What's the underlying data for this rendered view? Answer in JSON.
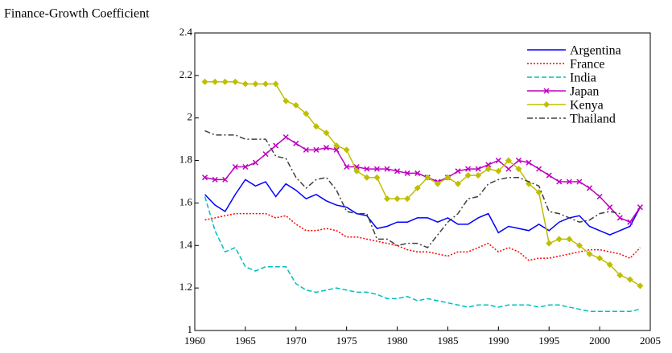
{
  "chart_data": {
    "type": "line",
    "title": "Finance-Growth Coefficient",
    "x": [
      1961,
      1962,
      1963,
      1964,
      1965,
      1966,
      1967,
      1968,
      1969,
      1970,
      1971,
      1972,
      1973,
      1974,
      1975,
      1976,
      1977,
      1978,
      1979,
      1980,
      1981,
      1982,
      1983,
      1984,
      1985,
      1986,
      1987,
      1988,
      1989,
      1990,
      1991,
      1992,
      1993,
      1994,
      1995,
      1996,
      1997,
      1998,
      1999,
      2000,
      2001,
      2002,
      2003,
      2004
    ],
    "xlim": [
      1960,
      2005
    ],
    "xticks": [
      1960,
      1965,
      1970,
      1975,
      1980,
      1985,
      1990,
      1995,
      2000,
      2005
    ],
    "ylim": [
      1,
      2.4
    ],
    "yticks": [
      1,
      1.2,
      1.4,
      1.6,
      1.8,
      2,
      2.2,
      2.4
    ],
    "legend": "upper right",
    "series": [
      {
        "name": "Argentina",
        "color": "#0000ff",
        "dash": "solid",
        "values": [
          1.64,
          1.59,
          1.56,
          1.64,
          1.71,
          1.68,
          1.7,
          1.63,
          1.69,
          1.66,
          1.62,
          1.64,
          1.61,
          1.59,
          1.58,
          1.55,
          1.54,
          1.48,
          1.49,
          1.51,
          1.51,
          1.53,
          1.53,
          1.51,
          1.53,
          1.5,
          1.5,
          1.53,
          1.55,
          1.46,
          1.49,
          1.48,
          1.47,
          1.5,
          1.47,
          1.51,
          1.53,
          1.54,
          1.49,
          1.47,
          1.45,
          1.47,
          1.49,
          1.58
        ]
      },
      {
        "name": "France",
        "color": "#ff0000",
        "dash": "dotted",
        "values": [
          1.52,
          1.53,
          1.54,
          1.55,
          1.55,
          1.55,
          1.55,
          1.53,
          1.54,
          1.5,
          1.47,
          1.47,
          1.48,
          1.47,
          1.44,
          1.44,
          1.43,
          1.42,
          1.41,
          1.4,
          1.38,
          1.37,
          1.37,
          1.36,
          1.35,
          1.37,
          1.37,
          1.39,
          1.41,
          1.37,
          1.39,
          1.37,
          1.33,
          1.34,
          1.34,
          1.35,
          1.36,
          1.37,
          1.38,
          1.38,
          1.37,
          1.36,
          1.34,
          1.39
        ]
      },
      {
        "name": "India",
        "color": "#00bfbf",
        "dash": "dashed",
        "values": [
          1.63,
          1.47,
          1.37,
          1.39,
          1.3,
          1.28,
          1.3,
          1.3,
          1.3,
          1.22,
          1.19,
          1.18,
          1.19,
          1.2,
          1.19,
          1.18,
          1.18,
          1.17,
          1.15,
          1.15,
          1.16,
          1.14,
          1.15,
          1.14,
          1.13,
          1.12,
          1.11,
          1.12,
          1.12,
          1.11,
          1.12,
          1.12,
          1.12,
          1.11,
          1.12,
          1.12,
          1.11,
          1.1,
          1.09,
          1.09,
          1.09,
          1.09,
          1.09,
          1.1
        ]
      },
      {
        "name": "Japan",
        "color": "#bf00bf",
        "dash": "solid",
        "marker": "x",
        "values": [
          1.72,
          1.71,
          1.71,
          1.77,
          1.77,
          1.79,
          1.83,
          1.87,
          1.91,
          1.88,
          1.85,
          1.85,
          1.86,
          1.85,
          1.77,
          1.77,
          1.76,
          1.76,
          1.76,
          1.75,
          1.74,
          1.74,
          1.72,
          1.7,
          1.72,
          1.75,
          1.76,
          1.76,
          1.78,
          1.8,
          1.76,
          1.8,
          1.79,
          1.76,
          1.73,
          1.7,
          1.7,
          1.7,
          1.67,
          1.63,
          1.58,
          1.53,
          1.51,
          1.58
        ]
      },
      {
        "name": "Kenya",
        "color": "#bfbf00",
        "dash": "solid",
        "marker": "diamond",
        "values": [
          2.17,
          2.17,
          2.17,
          2.17,
          2.16,
          2.16,
          2.16,
          2.16,
          2.08,
          2.06,
          2.02,
          1.96,
          1.93,
          1.87,
          1.85,
          1.75,
          1.72,
          1.72,
          1.62,
          1.62,
          1.62,
          1.67,
          1.72,
          1.69,
          1.72,
          1.69,
          1.73,
          1.73,
          1.76,
          1.75,
          1.8,
          1.76,
          1.69,
          1.65,
          1.41,
          1.43,
          1.43,
          1.4,
          1.36,
          1.34,
          1.31,
          1.26,
          1.24,
          1.21
        ]
      },
      {
        "name": "Thailand",
        "color": "#404040",
        "dash": "dashdot",
        "values": [
          1.94,
          1.92,
          1.92,
          1.92,
          1.9,
          1.9,
          1.9,
          1.82,
          1.81,
          1.72,
          1.67,
          1.71,
          1.72,
          1.66,
          1.56,
          1.55,
          1.55,
          1.43,
          1.43,
          1.4,
          1.41,
          1.41,
          1.39,
          1.45,
          1.51,
          1.55,
          1.62,
          1.63,
          1.69,
          1.71,
          1.72,
          1.72,
          1.7,
          1.68,
          1.56,
          1.55,
          1.53,
          1.51,
          1.52,
          1.55,
          1.56,
          1.55,
          null,
          null
        ]
      }
    ]
  }
}
